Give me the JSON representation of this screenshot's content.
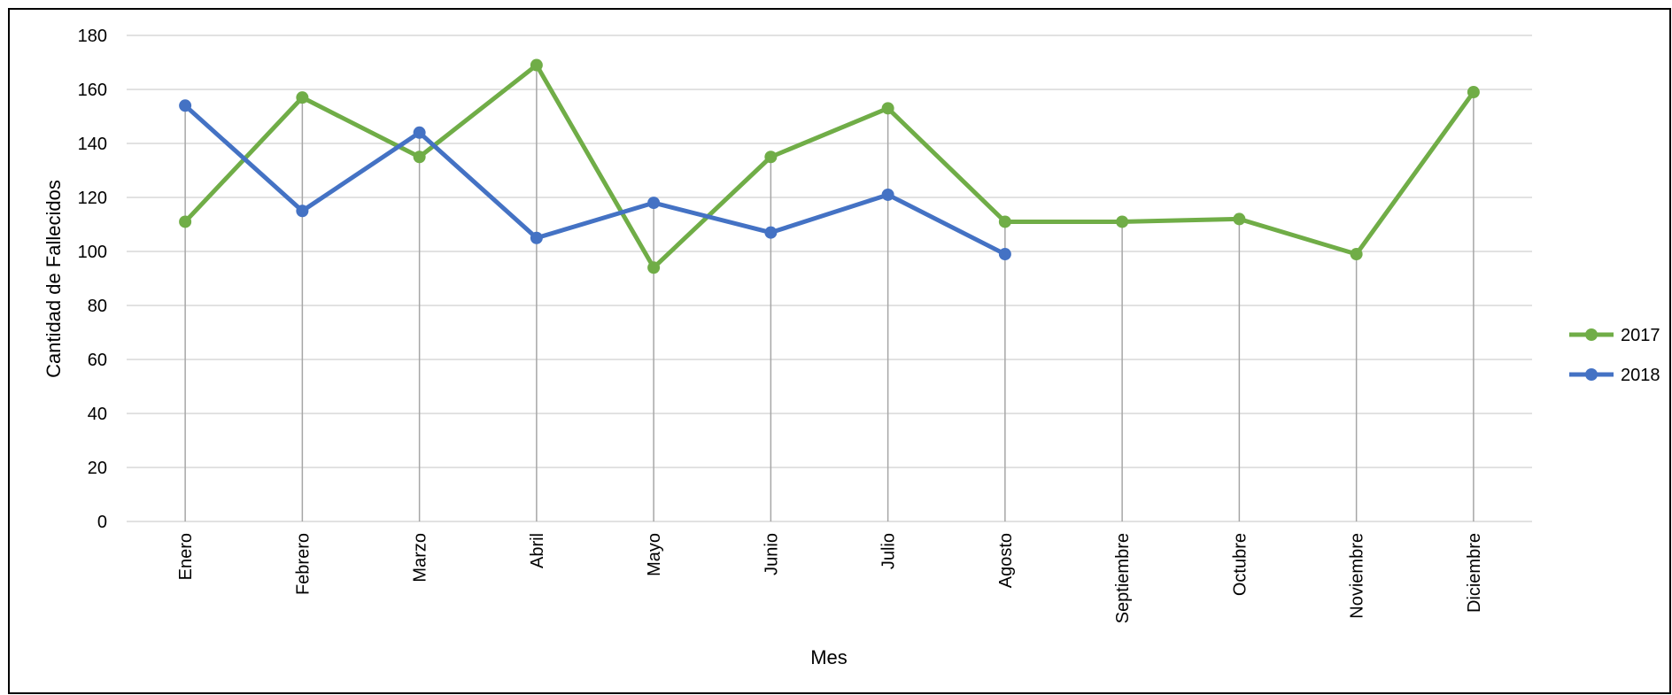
{
  "chart_data": {
    "type": "line",
    "title": "",
    "xlabel": "Mes",
    "ylabel": "Cantidad de Fallecidos",
    "categories": [
      "Enero",
      "Febrero",
      "Marzo",
      "Abril",
      "Mayo",
      "Junio",
      "Julio",
      "Agosto",
      "Septiembre",
      "Octubre",
      "Noviembre",
      "Diciembre"
    ],
    "ylim": [
      0,
      180
    ],
    "yticks": [
      "0",
      "20",
      "40",
      "60",
      "80",
      "100",
      "120",
      "140",
      "160",
      "180"
    ],
    "grid": true,
    "drop_lines": true,
    "legend_position": "right",
    "series": [
      {
        "name": "2017",
        "color": "#70ad47",
        "values": [
          111,
          157,
          135,
          169,
          94,
          135,
          153,
          111,
          111,
          112,
          99,
          159
        ]
      },
      {
        "name": "2018",
        "color": "#4472c4",
        "values": [
          154,
          115,
          144,
          105,
          118,
          107,
          121,
          99,
          null,
          null,
          null,
          null
        ]
      }
    ]
  }
}
